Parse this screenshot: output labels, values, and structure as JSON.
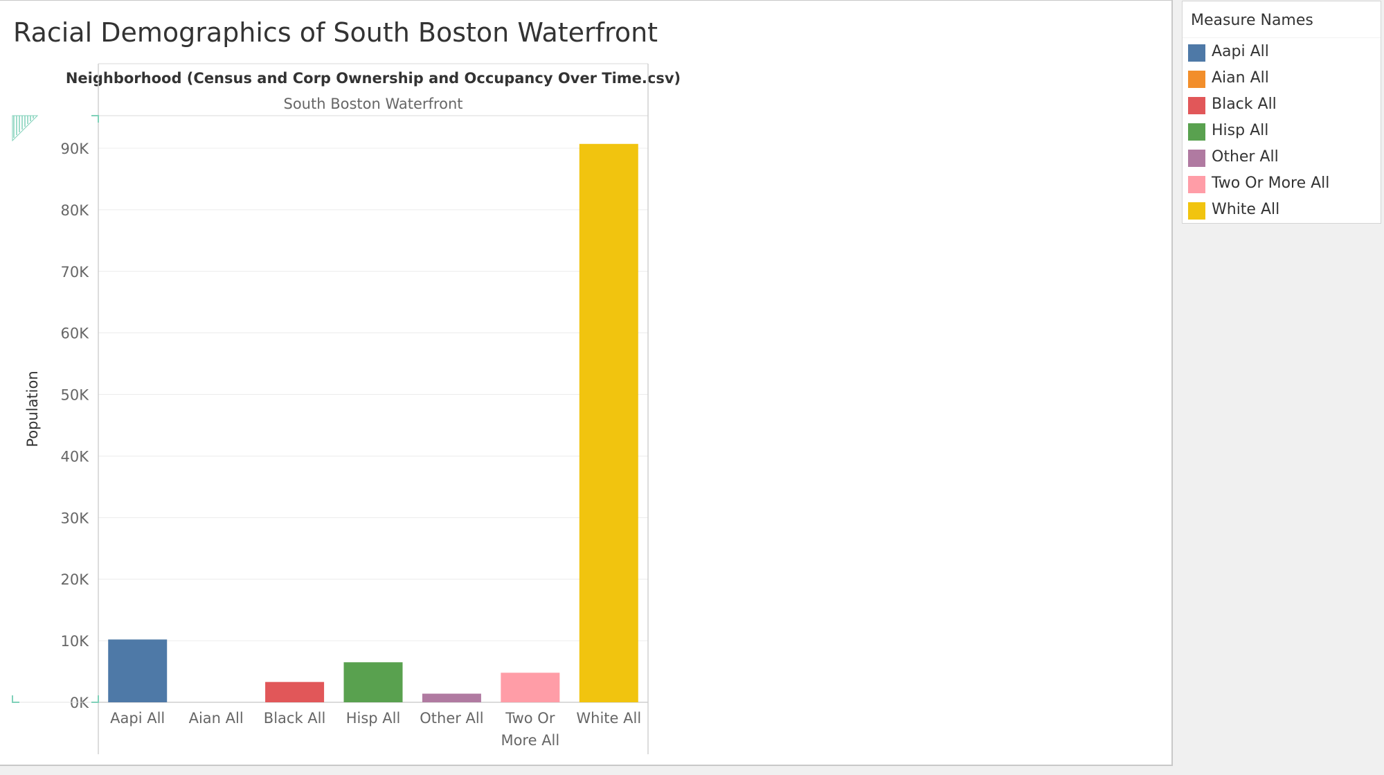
{
  "title": "Racial Demographics of South Boston Waterfront",
  "chart_data": {
    "type": "bar",
    "column_header": "Neighborhood (Census and Corp Ownership and Occupancy Over Time.csv)",
    "column_value": "South Boston Waterfront",
    "ylabel": "Population",
    "ylim": [
      0,
      95000
    ],
    "yticks": [
      0,
      10000,
      20000,
      30000,
      40000,
      50000,
      60000,
      70000,
      80000,
      90000
    ],
    "ytick_labels": [
      "0K",
      "10K",
      "20K",
      "30K",
      "40K",
      "50K",
      "60K",
      "70K",
      "80K",
      "90K"
    ],
    "categories": [
      "Aapi All",
      "Aian All",
      "Black All",
      "Hisp All",
      "Other All",
      "Two Or More All",
      "White All"
    ],
    "category_lines": [
      [
        "Aapi All"
      ],
      [
        "Aian All"
      ],
      [
        "Black All"
      ],
      [
        "Hisp All"
      ],
      [
        "Other All"
      ],
      [
        "Two Or",
        "More All"
      ],
      [
        "White All"
      ]
    ],
    "values": [
      10200,
      0,
      3300,
      6500,
      1400,
      4800,
      90700
    ],
    "colors": [
      "#4e79a7",
      "#f28e2b",
      "#e15759",
      "#59a14f",
      "#b07aa1",
      "#ff9da7",
      "#f1c40f"
    ],
    "grid": true
  },
  "legend": {
    "title": "Measure Names",
    "items": [
      {
        "label": "Aapi All",
        "color": "#4e79a7"
      },
      {
        "label": "Aian All",
        "color": "#f28e2b"
      },
      {
        "label": "Black All",
        "color": "#e15759"
      },
      {
        "label": "Hisp All",
        "color": "#59a14f"
      },
      {
        "label": "Other All",
        "color": "#b07aa1"
      },
      {
        "label": "Two Or More All",
        "color": "#ff9da7"
      },
      {
        "label": "White All",
        "color": "#f1c40f"
      }
    ]
  }
}
